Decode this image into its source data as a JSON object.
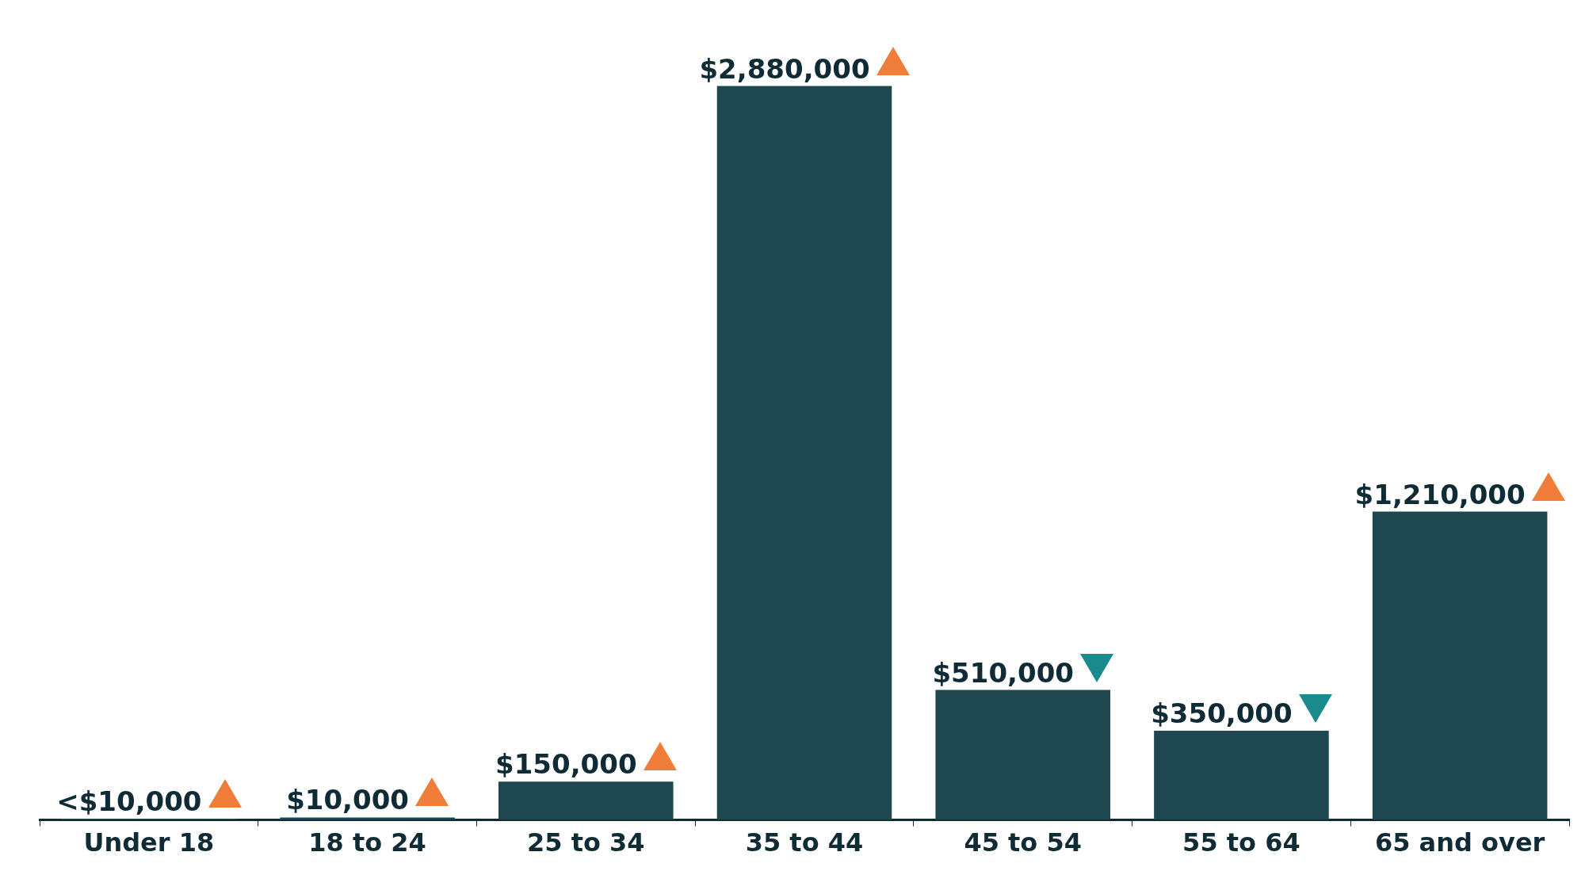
{
  "chart_data": {
    "type": "bar",
    "categories": [
      "Under 18",
      "18 to 24",
      "25 to 34",
      "35 to 44",
      "45 to 54",
      "55 to 64",
      "65 and over"
    ],
    "values": [
      5000,
      10000,
      150000,
      2880000,
      510000,
      350000,
      1210000
    ],
    "value_labels": [
      "<$10,000",
      "$10,000",
      "$150,000",
      "$2,880,000",
      "$510,000",
      "$350,000",
      "$1,210,000"
    ],
    "color": "#1f4750",
    "grid": false,
    "legend": false
  }
}
